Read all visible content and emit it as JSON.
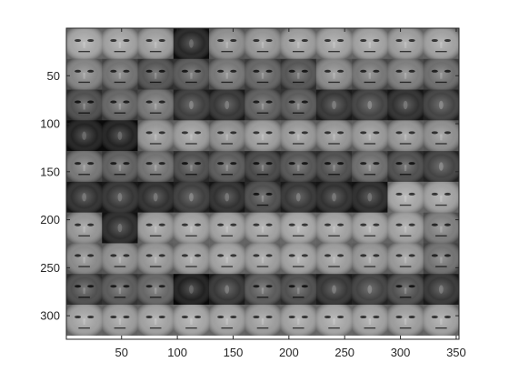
{
  "chart_data": {
    "type": "heatmap",
    "title": "",
    "xlabel": "",
    "ylabel": "",
    "xlim": [
      0.5,
      352.5
    ],
    "ylim": [
      0.5,
      324.5
    ],
    "y_direction": "reverse",
    "colormap": "gray",
    "grid": false,
    "x_ticks": [
      50,
      100,
      150,
      200,
      250,
      300,
      350
    ],
    "y_ticks": [
      50,
      100,
      150,
      200,
      250,
      300
    ],
    "montage": {
      "rows": 10,
      "cols": 11,
      "tile_width": 32,
      "tile_height": 32,
      "brightness": [
        [
          0.62,
          0.6,
          0.58,
          0.08,
          0.52,
          0.55,
          0.58,
          0.6,
          0.6,
          0.58,
          0.6
        ],
        [
          0.48,
          0.4,
          0.28,
          0.3,
          0.42,
          0.35,
          0.28,
          0.5,
          0.42,
          0.45,
          0.38
        ],
        [
          0.25,
          0.35,
          0.42,
          0.18,
          0.15,
          0.32,
          0.3,
          0.15,
          0.2,
          0.12,
          0.2
        ],
        [
          0.06,
          0.06,
          0.55,
          0.58,
          0.52,
          0.58,
          0.56,
          0.55,
          0.56,
          0.55,
          0.52
        ],
        [
          0.42,
          0.32,
          0.4,
          0.25,
          0.3,
          0.22,
          0.28,
          0.25,
          0.38,
          0.25,
          0.2
        ],
        [
          0.12,
          0.14,
          0.12,
          0.18,
          0.12,
          0.25,
          0.15,
          0.12,
          0.1,
          0.62,
          0.6
        ],
        [
          0.55,
          0.1,
          0.58,
          0.6,
          0.6,
          0.6,
          0.62,
          0.6,
          0.6,
          0.6,
          0.45
        ],
        [
          0.5,
          0.52,
          0.55,
          0.58,
          0.6,
          0.58,
          0.6,
          0.58,
          0.55,
          0.56,
          0.4
        ],
        [
          0.25,
          0.3,
          0.35,
          0.05,
          0.15,
          0.3,
          0.25,
          0.15,
          0.2,
          0.25,
          0.15
        ],
        [
          0.6,
          0.58,
          0.6,
          0.62,
          0.6,
          0.58,
          0.6,
          0.62,
          0.6,
          0.58,
          0.6
        ]
      ]
    }
  }
}
